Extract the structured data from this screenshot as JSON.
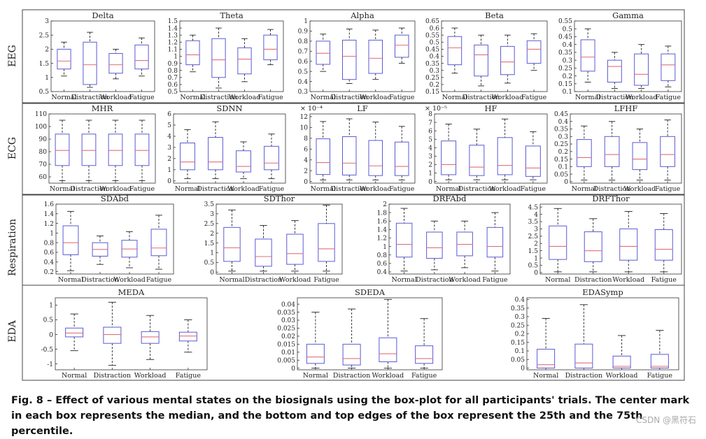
{
  "caption": "Fig. 8 – Effect of various mental states on the biosignals using the box-plot for all participants' trials. The center mark in each box represents the median, and the bottom and top edges of the box represent the 25th and the 75th percentile.",
  "watermark": "CSDN @黑符石",
  "colors": {
    "box": "#5a5ad6",
    "median": "#e0707a",
    "whisker": "#222222",
    "frame": "#444444"
  },
  "categories": [
    "Normal",
    "Distraction",
    "Workload",
    "Fatigue"
  ],
  "chart_data": [
    {
      "type": "box",
      "title": "Delta",
      "row": "EEG",
      "ylim": [
        0.5,
        3.0
      ],
      "yticks": [
        0.5,
        1,
        1.5,
        2,
        2.5,
        3
      ],
      "ytick_labels": [
        "0.5",
        "1",
        "1.5",
        "2",
        "2.5",
        "3"
      ],
      "boxes": [
        {
          "min": 1.05,
          "q1": 1.3,
          "median": 1.58,
          "q3": 2.0,
          "max": 2.25
        },
        {
          "min": 0.65,
          "q1": 0.75,
          "median": 1.45,
          "q3": 2.25,
          "max": 2.6
        },
        {
          "min": 0.95,
          "q1": 1.15,
          "median": 1.45,
          "q3": 1.85,
          "max": 2.0
        },
        {
          "min": 1.05,
          "q1": 1.3,
          "median": 1.6,
          "q3": 2.15,
          "max": 2.4
        }
      ]
    },
    {
      "type": "box",
      "title": "Theta",
      "row": "EEG",
      "ylim": [
        0.5,
        1.5
      ],
      "yticks": [
        0.5,
        0.6,
        0.7,
        0.8,
        0.9,
        1,
        1.1,
        1.2,
        1.3,
        1.4,
        1.5
      ],
      "ytick_labels": [
        "0.5",
        "0.6",
        "0.7",
        "0.8",
        "0.9",
        "1",
        "1.1",
        "1.2",
        "1.3",
        "1.4",
        "1.5"
      ],
      "boxes": [
        {
          "min": 0.78,
          "q1": 0.88,
          "median": 1.02,
          "q3": 1.22,
          "max": 1.3
        },
        {
          "min": 0.55,
          "q1": 0.7,
          "median": 0.95,
          "q3": 1.25,
          "max": 1.4
        },
        {
          "min": 0.64,
          "q1": 0.75,
          "median": 0.96,
          "q3": 1.12,
          "max": 1.25
        },
        {
          "min": 0.88,
          "q1": 0.95,
          "median": 1.1,
          "q3": 1.3,
          "max": 1.38
        }
      ]
    },
    {
      "type": "box",
      "title": "Alpha",
      "row": "EEG",
      "ylim": [
        0.3,
        1.0
      ],
      "yticks": [
        0.3,
        0.4,
        0.5,
        0.6,
        0.7,
        0.8,
        0.9,
        1
      ],
      "ytick_labels": [
        "0.3",
        "0.4",
        "0.5",
        "0.6",
        "0.7",
        "0.8",
        "0.9",
        "1"
      ],
      "boxes": [
        {
          "min": 0.5,
          "q1": 0.57,
          "median": 0.68,
          "q3": 0.8,
          "max": 0.87
        },
        {
          "min": 0.38,
          "q1": 0.42,
          "median": 0.65,
          "q3": 0.81,
          "max": 0.92
        },
        {
          "min": 0.42,
          "q1": 0.48,
          "median": 0.63,
          "q3": 0.81,
          "max": 0.91
        },
        {
          "min": 0.58,
          "q1": 0.64,
          "median": 0.76,
          "q3": 0.86,
          "max": 0.93
        }
      ]
    },
    {
      "type": "box",
      "title": "Beta",
      "row": "EEG",
      "ylim": [
        0.15,
        0.65
      ],
      "yticks": [
        0.15,
        0.2,
        0.25,
        0.3,
        0.35,
        0.4,
        0.45,
        0.5,
        0.55,
        0.6,
        0.65
      ],
      "ytick_labels": [
        "0.15",
        "0.2",
        "0.25",
        "0.3",
        "0.35",
        "0.4",
        "0.45",
        "0.5",
        "0.55",
        "0.6",
        "0.65"
      ],
      "boxes": [
        {
          "min": 0.28,
          "q1": 0.34,
          "median": 0.46,
          "q3": 0.54,
          "max": 0.6
        },
        {
          "min": 0.19,
          "q1": 0.26,
          "median": 0.41,
          "q3": 0.48,
          "max": 0.55
        },
        {
          "min": 0.21,
          "q1": 0.27,
          "median": 0.36,
          "q3": 0.47,
          "max": 0.55
        },
        {
          "min": 0.3,
          "q1": 0.35,
          "median": 0.45,
          "q3": 0.51,
          "max": 0.56
        }
      ]
    },
    {
      "type": "box",
      "title": "Gamma",
      "row": "EEG",
      "ylim": [
        0.1,
        0.55
      ],
      "yticks": [
        0.1,
        0.15,
        0.2,
        0.25,
        0.3,
        0.35,
        0.4,
        0.45,
        0.5,
        0.55
      ],
      "ytick_labels": [
        "0.1",
        "0.15",
        "0.2",
        "0.25",
        "0.3",
        "0.35",
        "0.4",
        "0.45",
        "0.5",
        "0.55"
      ],
      "boxes": [
        {
          "min": 0.16,
          "q1": 0.23,
          "median": 0.32,
          "q3": 0.43,
          "max": 0.5
        },
        {
          "min": 0.12,
          "q1": 0.16,
          "median": 0.26,
          "q3": 0.3,
          "max": 0.35
        },
        {
          "min": 0.12,
          "q1": 0.14,
          "median": 0.21,
          "q3": 0.34,
          "max": 0.4
        },
        {
          "min": 0.13,
          "q1": 0.17,
          "median": 0.27,
          "q3": 0.34,
          "max": 0.39
        }
      ]
    },
    {
      "type": "box",
      "title": "MHR",
      "row": "ECG",
      "ylim": [
        55,
        110
      ],
      "yticks": [
        60,
        70,
        80,
        90,
        100,
        110
      ],
      "ytick_labels": [
        "60",
        "70",
        "80",
        "90",
        "100",
        "110"
      ],
      "boxes": [
        {
          "min": 57,
          "q1": 69,
          "median": 81,
          "q3": 94,
          "max": 105
        },
        {
          "min": 57,
          "q1": 69,
          "median": 81,
          "q3": 94,
          "max": 105
        },
        {
          "min": 57,
          "q1": 69,
          "median": 81,
          "q3": 94,
          "max": 105
        },
        {
          "min": 57,
          "q1": 69,
          "median": 81,
          "q3": 94,
          "max": 105
        }
      ]
    },
    {
      "type": "box",
      "title": "SDNN",
      "row": "ECG",
      "ylim": [
        -0.2,
        6
      ],
      "yticks": [
        0,
        1,
        2,
        3,
        4,
        5,
        6
      ],
      "ytick_labels": [
        "0",
        "1",
        "2",
        "3",
        "4",
        "5",
        "6"
      ],
      "boxes": [
        {
          "min": 0.2,
          "q1": 1.0,
          "median": 1.7,
          "q3": 3.4,
          "max": 4.6
        },
        {
          "min": 0.2,
          "q1": 1.0,
          "median": 1.7,
          "q3": 3.9,
          "max": 5.3
        },
        {
          "min": 0.2,
          "q1": 0.8,
          "median": 1.3,
          "q3": 2.7,
          "max": 3.5
        },
        {
          "min": 0.2,
          "q1": 1.0,
          "median": 1.6,
          "q3": 3.1,
          "max": 4.2
        }
      ]
    },
    {
      "type": "box",
      "title": "LF",
      "row": "ECG",
      "ylim": [
        -0.3,
        12.5
      ],
      "yticks": [
        0,
        2,
        4,
        6,
        8,
        10,
        12
      ],
      "ytick_labels": [
        "0",
        "2",
        "4",
        "6",
        "8",
        "10",
        "12"
      ],
      "scale_label": "× 10⁻⁴",
      "boxes": [
        {
          "min": 0.3,
          "q1": 1.3,
          "median": 3.5,
          "q3": 7.9,
          "max": 11.1
        },
        {
          "min": 0.3,
          "q1": 1.2,
          "median": 3.4,
          "q3": 8.3,
          "max": 11.6
        },
        {
          "min": 0.3,
          "q1": 1.1,
          "median": 2.9,
          "q3": 7.6,
          "max": 11.0
        },
        {
          "min": 0.3,
          "q1": 1.1,
          "median": 2.8,
          "q3": 7.3,
          "max": 10.2
        }
      ]
    },
    {
      "type": "box",
      "title": "HF",
      "row": "ECG",
      "ylim": [
        -0.2,
        8
      ],
      "yticks": [
        0,
        1,
        2,
        3,
        4,
        5,
        6,
        7,
        8
      ],
      "ytick_labels": [
        "0",
        "1",
        "2",
        "3",
        "4",
        "5",
        "6",
        "7",
        "8"
      ],
      "scale_label": "× 10⁻⁵",
      "boxes": [
        {
          "min": 0.2,
          "q1": 0.8,
          "median": 2.0,
          "q3": 4.8,
          "max": 6.8
        },
        {
          "min": 0.2,
          "q1": 0.7,
          "median": 1.7,
          "q3": 4.3,
          "max": 6.2
        },
        {
          "min": 0.2,
          "q1": 0.8,
          "median": 1.9,
          "q3": 5.2,
          "max": 7.4
        },
        {
          "min": 0.2,
          "q1": 0.6,
          "median": 1.6,
          "q3": 4.2,
          "max": 5.9
        }
      ]
    },
    {
      "type": "box",
      "title": "LFHF",
      "row": "ECG",
      "ylim": [
        -0.01,
        0.45
      ],
      "yticks": [
        0,
        0.05,
        0.1,
        0.15,
        0.2,
        0.25,
        0.3,
        0.35,
        0.4,
        0.45
      ],
      "ytick_labels": [
        "0",
        "0.05",
        "0.1",
        "0.15",
        "0.2",
        "0.25",
        "0.3",
        "0.35",
        "0.4",
        "0.45"
      ],
      "boxes": [
        {
          "min": 0.01,
          "q1": 0.1,
          "median": 0.16,
          "q3": 0.28,
          "max": 0.37
        },
        {
          "min": 0.01,
          "q1": 0.1,
          "median": 0.18,
          "q3": 0.3,
          "max": 0.4
        },
        {
          "min": 0.01,
          "q1": 0.08,
          "median": 0.15,
          "q3": 0.26,
          "max": 0.35
        },
        {
          "min": 0.01,
          "q1": 0.1,
          "median": 0.18,
          "q3": 0.3,
          "max": 0.41
        }
      ]
    },
    {
      "type": "box",
      "title": "SDAbd",
      "row": "Respiration",
      "ylim": [
        0.15,
        1.6
      ],
      "yticks": [
        0.2,
        0.4,
        0.6,
        0.8,
        1,
        1.2,
        1.4,
        1.6
      ],
      "ytick_labels": [
        "0.2",
        "0.4",
        "0.6",
        "0.8",
        "1",
        "1.2",
        "1.4",
        "1.6"
      ],
      "boxes": [
        {
          "min": 0.22,
          "q1": 0.55,
          "median": 0.8,
          "q3": 1.15,
          "max": 1.45
        },
        {
          "min": 0.35,
          "q1": 0.52,
          "median": 0.66,
          "q3": 0.8,
          "max": 0.94
        },
        {
          "min": 0.28,
          "q1": 0.5,
          "median": 0.67,
          "q3": 0.85,
          "max": 1.03
        },
        {
          "min": 0.25,
          "q1": 0.53,
          "median": 0.69,
          "q3": 1.08,
          "max": 1.37
        }
      ]
    },
    {
      "type": "box",
      "title": "SDThor",
      "row": "Respiration",
      "ylim": [
        -0.1,
        3.5
      ],
      "yticks": [
        0,
        0.5,
        1,
        1.5,
        2,
        2.5,
        3,
        3.5
      ],
      "ytick_labels": [
        "0",
        "0.5",
        "1",
        "1.5",
        "2",
        "2.5",
        "3",
        "3.5"
      ],
      "boxes": [
        {
          "min": 0.05,
          "q1": 0.55,
          "median": 1.25,
          "q3": 2.3,
          "max": 3.2
        },
        {
          "min": 0.05,
          "q1": 0.3,
          "median": 0.8,
          "q3": 1.7,
          "max": 2.4
        },
        {
          "min": 0.05,
          "q1": 0.4,
          "median": 0.95,
          "q3": 1.95,
          "max": 2.65
        },
        {
          "min": 0.05,
          "q1": 0.55,
          "median": 1.2,
          "q3": 2.5,
          "max": 3.45
        }
      ]
    },
    {
      "type": "box",
      "title": "DRFAbd",
      "row": "Respiration",
      "ylim": [
        0.35,
        2.0
      ],
      "yticks": [
        0.4,
        0.6,
        0.8,
        1,
        1.2,
        1.4,
        1.6,
        1.8,
        2
      ],
      "ytick_labels": [
        "0.4",
        "0.6",
        "0.8",
        "1",
        "1.2",
        "1.4",
        "1.6",
        "1.8",
        "2"
      ],
      "boxes": [
        {
          "min": 0.42,
          "q1": 0.75,
          "median": 1.05,
          "q3": 1.55,
          "max": 1.9
        },
        {
          "min": 0.45,
          "q1": 0.72,
          "median": 0.97,
          "q3": 1.34,
          "max": 1.6
        },
        {
          "min": 0.5,
          "q1": 0.78,
          "median": 1.05,
          "q3": 1.34,
          "max": 1.6
        },
        {
          "min": 0.42,
          "q1": 0.75,
          "median": 1.0,
          "q3": 1.45,
          "max": 1.8
        }
      ]
    },
    {
      "type": "box",
      "title": "DRFThor",
      "row": "Respiration",
      "ylim": [
        -0.1,
        4.7
      ],
      "yticks": [
        0,
        0.5,
        1,
        1.5,
        2,
        2.5,
        3,
        3.5,
        4,
        4.5
      ],
      "ytick_labels": [
        "0",
        "0.5",
        "1",
        "1.5",
        "2",
        "2.5",
        "3",
        "3.5",
        "4",
        "4.5"
      ],
      "boxes": [
        {
          "min": 0.05,
          "q1": 0.9,
          "median": 1.8,
          "q3": 3.2,
          "max": 4.4
        },
        {
          "min": 0.05,
          "q1": 0.75,
          "median": 1.5,
          "q3": 2.8,
          "max": 3.7
        },
        {
          "min": 0.05,
          "q1": 0.85,
          "median": 1.8,
          "q3": 3.0,
          "max": 4.2
        },
        {
          "min": 0.05,
          "q1": 0.85,
          "median": 1.6,
          "q3": 2.95,
          "max": 4.05
        }
      ]
    },
    {
      "type": "box",
      "title": "MEDA",
      "row": "EDA",
      "ylim": [
        -1.2,
        1.25
      ],
      "yticks": [
        -1,
        -0.5,
        0,
        0.5,
        1
      ],
      "ytick_labels": [
        "-1",
        "-0.5",
        "0",
        "0.5",
        "1"
      ],
      "boxes": [
        {
          "min": -0.55,
          "q1": -0.08,
          "median": 0.05,
          "q3": 0.22,
          "max": 0.7
        },
        {
          "min": -1.05,
          "q1": -0.3,
          "median": 0.0,
          "q3": 0.25,
          "max": 1.1
        },
        {
          "min": -0.85,
          "q1": -0.3,
          "median": -0.08,
          "q3": 0.1,
          "max": 0.65
        },
        {
          "min": -0.6,
          "q1": -0.22,
          "median": -0.05,
          "q3": 0.08,
          "max": 0.5
        }
      ]
    },
    {
      "type": "box",
      "title": "SDEDA",
      "row": "EDA",
      "ylim": [
        -0.001,
        0.044
      ],
      "yticks": [
        0,
        0.005,
        0.01,
        0.015,
        0.02,
        0.025,
        0.03,
        0.035,
        0.04
      ],
      "ytick_labels": [
        "0",
        "0.005",
        "0.01",
        "0.015",
        "0.02",
        "0.025",
        "0.03",
        "0.035",
        "0.04"
      ],
      "boxes": [
        {
          "min": 0.0,
          "q1": 0.003,
          "median": 0.007,
          "q3": 0.015,
          "max": 0.035
        },
        {
          "min": 0.0,
          "q1": 0.002,
          "median": 0.006,
          "q3": 0.015,
          "max": 0.037
        },
        {
          "min": 0.0,
          "q1": 0.004,
          "median": 0.009,
          "q3": 0.019,
          "max": 0.043
        },
        {
          "min": 0.0,
          "q1": 0.003,
          "median": 0.006,
          "q3": 0.014,
          "max": 0.031
        }
      ]
    },
    {
      "type": "box",
      "title": "EDASymp",
      "row": "EDA",
      "ylim": [
        -0.01,
        0.41
      ],
      "yticks": [
        0,
        0.05,
        0.1,
        0.15,
        0.2,
        0.25,
        0.3,
        0.35,
        0.4
      ],
      "ytick_labels": [
        "0",
        "0.05",
        "0.1",
        "0.15",
        "0.2",
        "0.25",
        "0.3",
        "0.35",
        "0.4"
      ],
      "boxes": [
        {
          "min": 0.0,
          "q1": 0.0,
          "median": 0.02,
          "q3": 0.11,
          "max": 0.29
        },
        {
          "min": 0.0,
          "q1": 0.0,
          "median": 0.03,
          "q3": 0.14,
          "max": 0.37
        },
        {
          "min": 0.0,
          "q1": 0.0,
          "median": 0.01,
          "q3": 0.07,
          "max": 0.19
        },
        {
          "min": 0.0,
          "q1": 0.0,
          "median": 0.01,
          "q3": 0.08,
          "max": 0.22
        }
      ]
    }
  ]
}
